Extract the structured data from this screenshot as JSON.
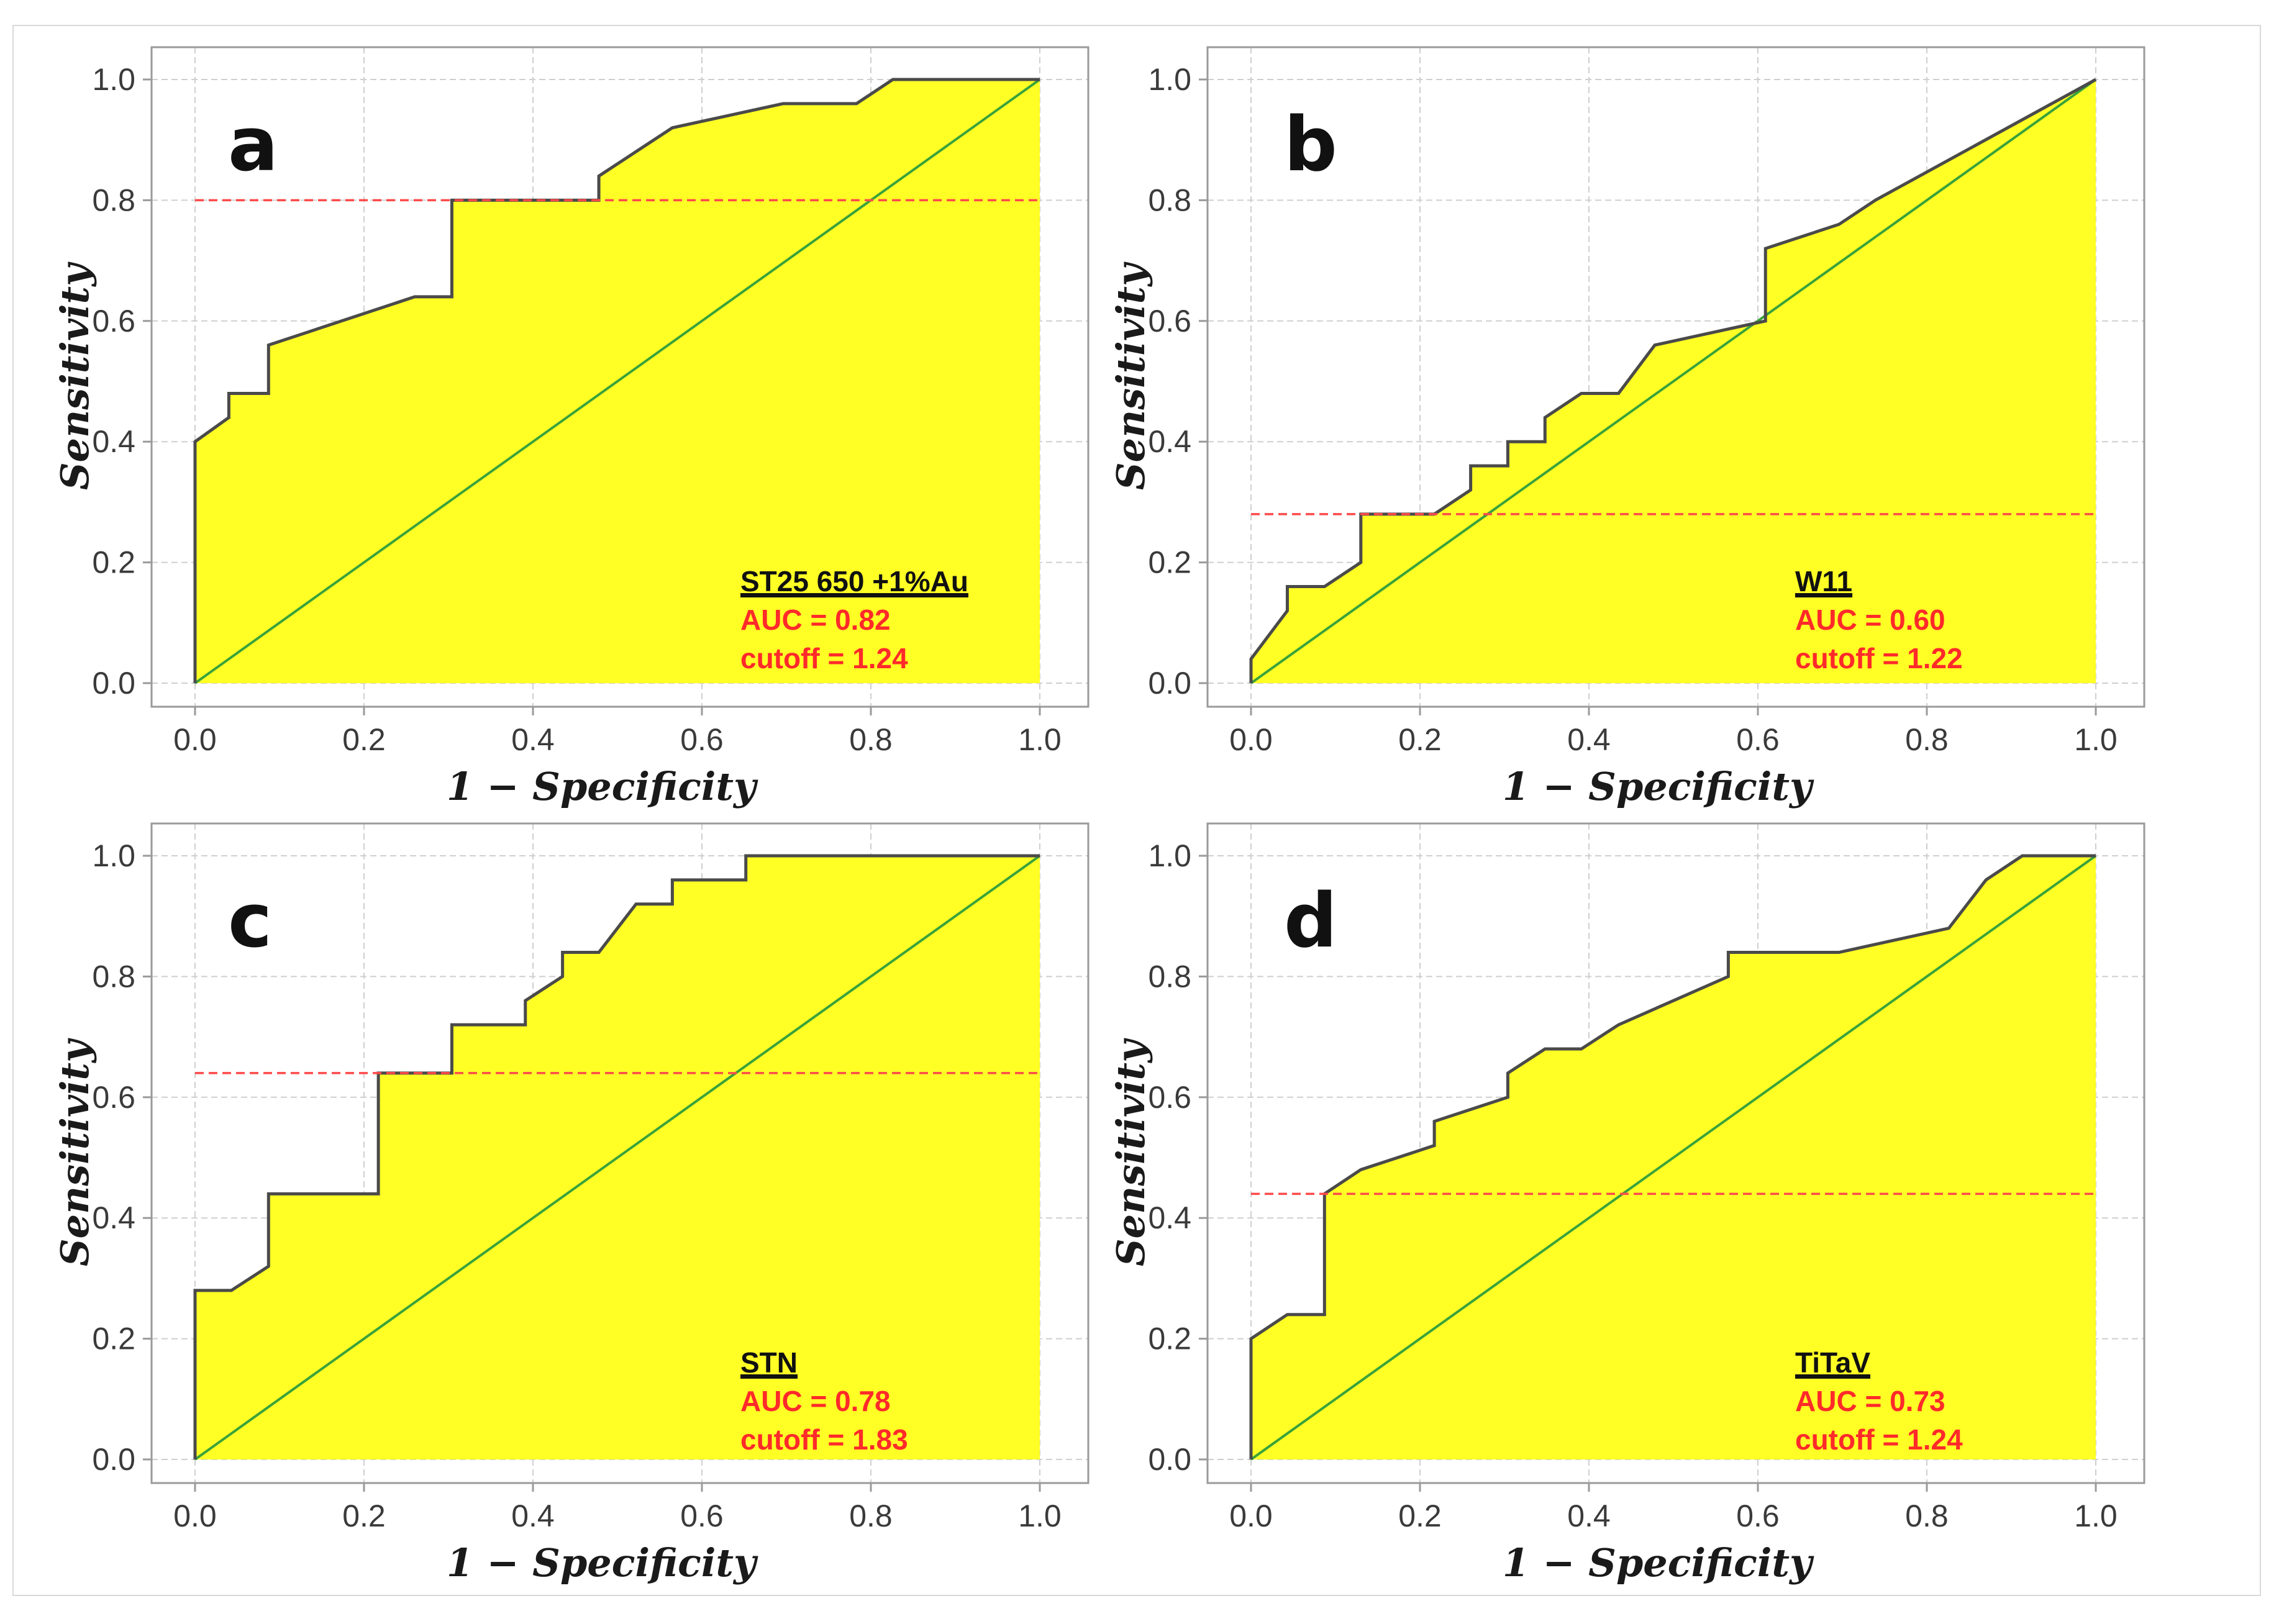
{
  "colors": {
    "fill": "#ffff26",
    "roc_line": "#4a4a4a",
    "diagonal": "#3aa23a",
    "cutoff_line": "#ff4a4a",
    "grid": "#cfcfcf",
    "axis_box": "#9a9a9a",
    "stat_text": "#ff2a2a"
  },
  "chart_data": [
    {
      "type": "line",
      "panel": "a",
      "series_name": "ST25 650 +1%Au",
      "auc_text": "AUC = 0.82",
      "cutoff_text": "cutoff = 1.24",
      "xlabel": "1 − Specificity",
      "ylabel": "Sensitivity",
      "xlim": [
        0,
        1
      ],
      "ylim": [
        0,
        1
      ],
      "x_ticks": [
        "0.0",
        "0.2",
        "0.4",
        "0.6",
        "0.8",
        "1.0"
      ],
      "y_ticks": [
        "0.0",
        "0.2",
        "0.4",
        "0.6",
        "0.8",
        "1.0"
      ],
      "cutoff_sensitivity": 0.8,
      "roc_x": [
        0,
        0,
        0.04,
        0.04,
        0.087,
        0.087,
        0.26,
        0.304,
        0.304,
        0.478,
        0.478,
        0.565,
        0.696,
        0.783,
        0.826,
        1.0
      ],
      "roc_y": [
        0,
        0.4,
        0.44,
        0.48,
        0.48,
        0.56,
        0.64,
        0.64,
        0.8,
        0.8,
        0.84,
        0.92,
        0.96,
        0.96,
        1.0,
        1.0
      ]
    },
    {
      "type": "line",
      "panel": "b",
      "series_name": "W11",
      "auc_text": "AUC = 0.60",
      "cutoff_text": "cutoff = 1.22",
      "xlabel": "1 − Specificity",
      "ylabel": "Sensitivity",
      "xlim": [
        0,
        1
      ],
      "ylim": [
        0,
        1
      ],
      "x_ticks": [
        "0.0",
        "0.2",
        "0.4",
        "0.6",
        "0.8",
        "1.0"
      ],
      "y_ticks": [
        "0.0",
        "0.2",
        "0.4",
        "0.6",
        "0.8",
        "1.0"
      ],
      "cutoff_sensitivity": 0.28,
      "roc_x": [
        0,
        0,
        0.043,
        0.043,
        0.087,
        0.13,
        0.13,
        0.217,
        0.26,
        0.26,
        0.304,
        0.304,
        0.348,
        0.348,
        0.391,
        0.435,
        0.478,
        0.609,
        0.609,
        0.696,
        0.739,
        1.0
      ],
      "roc_y": [
        0,
        0.04,
        0.12,
        0.16,
        0.16,
        0.2,
        0.28,
        0.28,
        0.32,
        0.36,
        0.36,
        0.4,
        0.4,
        0.44,
        0.48,
        0.48,
        0.56,
        0.6,
        0.72,
        0.76,
        0.8,
        1.0
      ]
    },
    {
      "type": "line",
      "panel": "c",
      "series_name": "STN",
      "auc_text": "AUC = 0.78",
      "cutoff_text": "cutoff = 1.83",
      "xlabel": "1 − Specificity",
      "ylabel": "Sensitivity",
      "xlim": [
        0,
        1
      ],
      "ylim": [
        0,
        1
      ],
      "x_ticks": [
        "0.0",
        "0.2",
        "0.4",
        "0.6",
        "0.8",
        "1.0"
      ],
      "y_ticks": [
        "0.0",
        "0.2",
        "0.4",
        "0.6",
        "0.8",
        "1.0"
      ],
      "cutoff_sensitivity": 0.64,
      "roc_x": [
        0,
        0,
        0.043,
        0.087,
        0.087,
        0.217,
        0.217,
        0.304,
        0.304,
        0.391,
        0.391,
        0.435,
        0.435,
        0.478,
        0.522,
        0.565,
        0.565,
        0.652,
        0.652,
        1.0
      ],
      "roc_y": [
        0,
        0.28,
        0.28,
        0.32,
        0.44,
        0.44,
        0.64,
        0.64,
        0.72,
        0.72,
        0.76,
        0.8,
        0.84,
        0.84,
        0.92,
        0.92,
        0.96,
        0.96,
        1.0,
        1.0
      ]
    },
    {
      "type": "line",
      "panel": "d",
      "series_name": "TiTaV",
      "auc_text": "AUC = 0.73",
      "cutoff_text": "cutoff = 1.24",
      "xlabel": "1 − Specificity",
      "ylabel": "Sensitivity",
      "xlim": [
        0,
        1
      ],
      "ylim": [
        0,
        1
      ],
      "x_ticks": [
        "0.0",
        "0.2",
        "0.4",
        "0.6",
        "0.8",
        "1.0"
      ],
      "y_ticks": [
        "0.0",
        "0.2",
        "0.4",
        "0.6",
        "0.8",
        "1.0"
      ],
      "cutoff_sensitivity": 0.44,
      "roc_x": [
        0,
        0,
        0.043,
        0.087,
        0.087,
        0.13,
        0.217,
        0.217,
        0.304,
        0.304,
        0.348,
        0.391,
        0.435,
        0.565,
        0.565,
        0.696,
        0.826,
        0.87,
        0.913,
        1.0
      ],
      "roc_y": [
        0,
        0.2,
        0.24,
        0.24,
        0.44,
        0.48,
        0.52,
        0.56,
        0.6,
        0.64,
        0.68,
        0.68,
        0.72,
        0.8,
        0.84,
        0.84,
        0.88,
        0.96,
        1.0,
        1.0
      ]
    }
  ]
}
